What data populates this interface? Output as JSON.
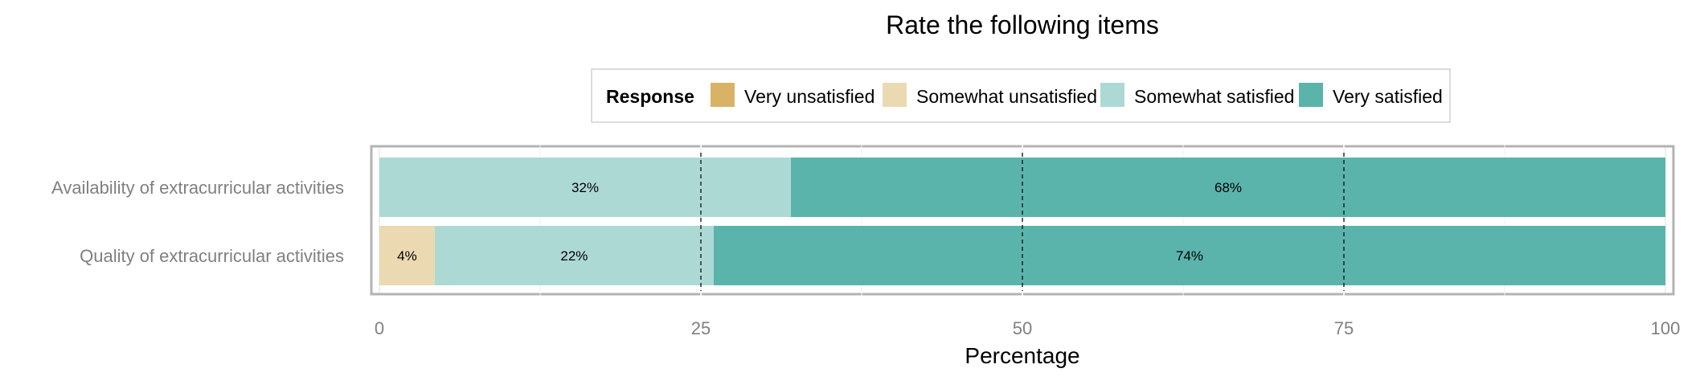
{
  "chart_data": {
    "type": "bar",
    "orientation": "horizontal",
    "stacked": true,
    "title": "Rate the following items",
    "xlabel": "Percentage",
    "ylabel": "",
    "xlim": [
      0,
      100
    ],
    "x_ticks": [
      0,
      25,
      50,
      75,
      100
    ],
    "legend": {
      "title": "Response",
      "position": "top",
      "entries": [
        "Very unsatisfied",
        "Somewhat unsatisfied",
        "Somewhat satisfied",
        "Very satisfied"
      ]
    },
    "categories": [
      "Availability of extracurricular activities",
      "Quality of extracurricular activities"
    ],
    "series": [
      {
        "name": "Very unsatisfied",
        "color": "#D8B365",
        "values": [
          0,
          0
        ],
        "labels": [
          "",
          ""
        ]
      },
      {
        "name": "Somewhat unsatisfied",
        "color": "#EBD9B2",
        "values": [
          0,
          4.3
        ],
        "labels": [
          "",
          "4%"
        ]
      },
      {
        "name": "Somewhat satisfied",
        "color": "#ADD9D5",
        "values": [
          32,
          21.7
        ],
        "labels": [
          "32%",
          "22%"
        ]
      },
      {
        "name": "Very satisfied",
        "color": "#5AB4AC",
        "values": [
          68,
          74
        ],
        "labels": [
          "68%",
          "74%"
        ]
      }
    ],
    "grid": true,
    "reference_lines": [
      25,
      50,
      75
    ]
  }
}
